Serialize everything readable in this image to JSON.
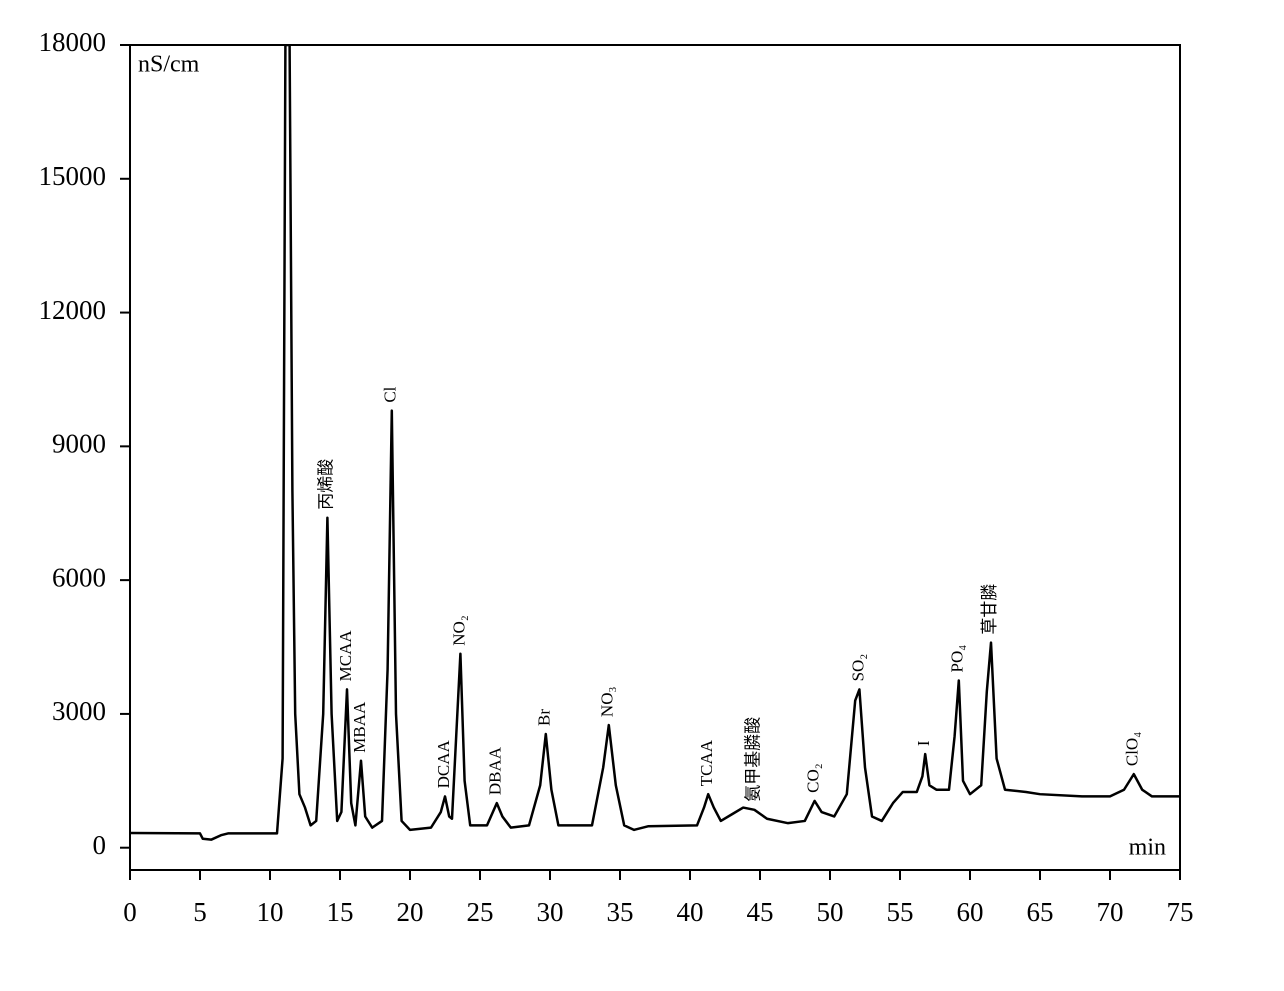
{
  "chart_data": {
    "type": "line",
    "y_label": "nS/cm",
    "x_label": "min",
    "xlim": [
      0,
      75
    ],
    "xticks": [
      0,
      5,
      10,
      15,
      20,
      25,
      30,
      35,
      40,
      45,
      50,
      55,
      60,
      65,
      70,
      75
    ],
    "ylim": [
      -500,
      18000
    ],
    "yticks": [
      0,
      3000,
      6000,
      9000,
      12000,
      15000,
      18000
    ],
    "series": [
      {
        "color": "#000000",
        "x": [
          0,
          5,
          5.2,
          5.8,
          6.5,
          7,
          10.5,
          10.9,
          11.1,
          11.4,
          11.6,
          11.8,
          12.1,
          12.5,
          12.9,
          13.3,
          13.8,
          14.1,
          14.4,
          14.8,
          15.1,
          15.5,
          15.8,
          16.1,
          16.5,
          16.8,
          17.3,
          18.0,
          18.4,
          18.7,
          19.0,
          19.4,
          20,
          21.5,
          22.2,
          22.5,
          22.8,
          23.0,
          23.3,
          23.6,
          23.9,
          24.3,
          25.5,
          26.2,
          26.6,
          27.2,
          28.5,
          29.3,
          29.7,
          30.1,
          30.6,
          33,
          33.8,
          34.2,
          34.7,
          35.3,
          36,
          37,
          40.5,
          41.0,
          41.3,
          41.7,
          42.2,
          43,
          43.8,
          44.6,
          45.5,
          47,
          48.2,
          48.9,
          49.4,
          50.3,
          51.2,
          51.8,
          52.1,
          52.5,
          53,
          53.7,
          54.5,
          55.2,
          56.2,
          56.6,
          56.8,
          57.1,
          57.6,
          58.5,
          58.9,
          59.2,
          59.5,
          60,
          60.8,
          61.2,
          61.5,
          61.9,
          62.5,
          64,
          65,
          68,
          70,
          71,
          71.7,
          72.3,
          73,
          75
        ],
        "values": [
          330,
          320,
          200,
          180,
          280,
          320,
          320,
          2000,
          18000,
          18000,
          8000,
          3000,
          1200,
          900,
          500,
          600,
          3000,
          7400,
          3000,
          600,
          800,
          3550,
          1000,
          500,
          1950,
          700,
          450,
          600,
          4000,
          9800,
          3000,
          600,
          400,
          450,
          800,
          1150,
          700,
          650,
          2500,
          4350,
          1500,
          500,
          500,
          1000,
          700,
          450,
          500,
          1400,
          2550,
          1300,
          500,
          500,
          1800,
          2750,
          1400,
          500,
          400,
          480,
          500,
          900,
          1200,
          900,
          600,
          750,
          900,
          850,
          650,
          550,
          600,
          1050,
          800,
          700,
          1200,
          3300,
          3550,
          1800,
          700,
          600,
          1000,
          1250,
          1250,
          1600,
          2100,
          1400,
          1300,
          1300,
          2500,
          3750,
          1500,
          1200,
          1400,
          3500,
          4600,
          2000,
          1300,
          1250,
          1200,
          1150,
          1150,
          1300,
          1650,
          1300,
          1150,
          1150
        ]
      }
    ],
    "annotations": [
      {
        "text": "丙烯酸",
        "x": 14.1
      },
      {
        "text": "MCAA",
        "x": 15.5
      },
      {
        "text": "MBAA",
        "x": 16.5
      },
      {
        "text": "Cl",
        "x": 18.7
      },
      {
        "text": "DCAA",
        "x": 22.5
      },
      {
        "text": "NO₂",
        "x": 23.6
      },
      {
        "text": "DBAA",
        "x": 26.2
      },
      {
        "text": "Br",
        "x": 29.7
      },
      {
        "text": "NO₃",
        "x": 34.2
      },
      {
        "text": "TCAA",
        "x": 41.3
      },
      {
        "text": "氨甲基膦酸",
        "x": 44.6
      },
      {
        "text": "CO₂",
        "x": 48.9
      },
      {
        "text": "SO₂",
        "x": 52.1
      },
      {
        "text": "I",
        "x": 56.8
      },
      {
        "text": "PO₄",
        "x": 59.2
      },
      {
        "text": "草甘膦",
        "x": 61.5
      },
      {
        "text": "ClO₄",
        "x": 71.7
      }
    ]
  }
}
